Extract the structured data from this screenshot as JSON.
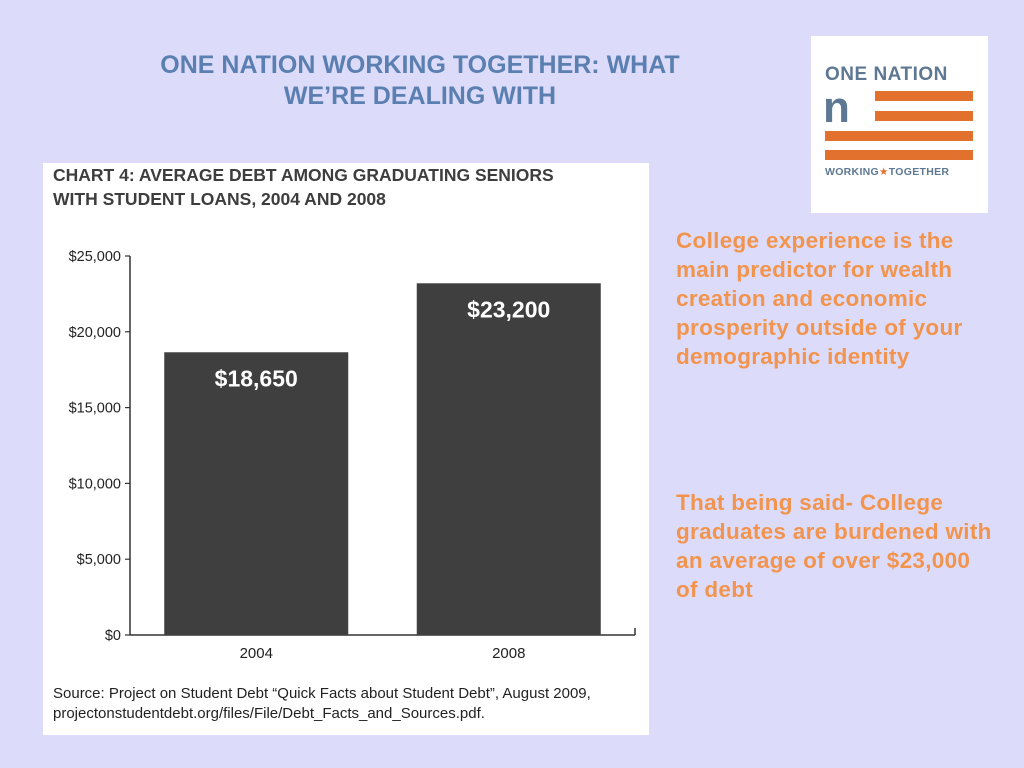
{
  "slide": {
    "title_line1": "ONE NATION WORKING TOGETHER: WHAT",
    "title_line2": "WE’RE DEALING WITH",
    "paragraph1": "College experience is the main predictor for wealth creation and economic prosperity outside of your demographic identity",
    "paragraph2": "That being said- College graduates are burdened with an average of over $23,000 of debt"
  },
  "logo": {
    "top_text": "ONE NATION",
    "mark_text": "n",
    "bottom_left": "WORKING",
    "bottom_star": "★",
    "bottom_right": "TOGETHER"
  },
  "chart_data": {
    "type": "bar",
    "title_line1": "CHART 4: AVERAGE DEBT AMONG GRADUATING SENIORS",
    "title_line2": "WITH STUDENT LOANS, 2004 AND 2008",
    "categories": [
      "2004",
      "2008"
    ],
    "values": [
      18650,
      23200
    ],
    "data_labels": [
      "$18,650",
      "$23,200"
    ],
    "ylim": [
      0,
      25000
    ],
    "yticks": [
      0,
      5000,
      10000,
      15000,
      20000,
      25000
    ],
    "ytick_labels": [
      "$0",
      "$5,000",
      "$10,000",
      "$15,000",
      "$20,000",
      "$25,000"
    ],
    "xlabel": "",
    "ylabel": "",
    "grid": false,
    "bar_color": "#3f3f3f",
    "source": "Source: Project on Student Debt “Quick Facts about Student Debt”, August 2009, projectonstudentdebt.org/files/File/Debt_Facts_and_Sources.pdf."
  },
  "colors": {
    "background": "#dcdcfa",
    "title": "#5a7fb0",
    "accent": "#f2944d",
    "logo_orange": "#e3712e",
    "logo_gray": "#5e7893"
  }
}
